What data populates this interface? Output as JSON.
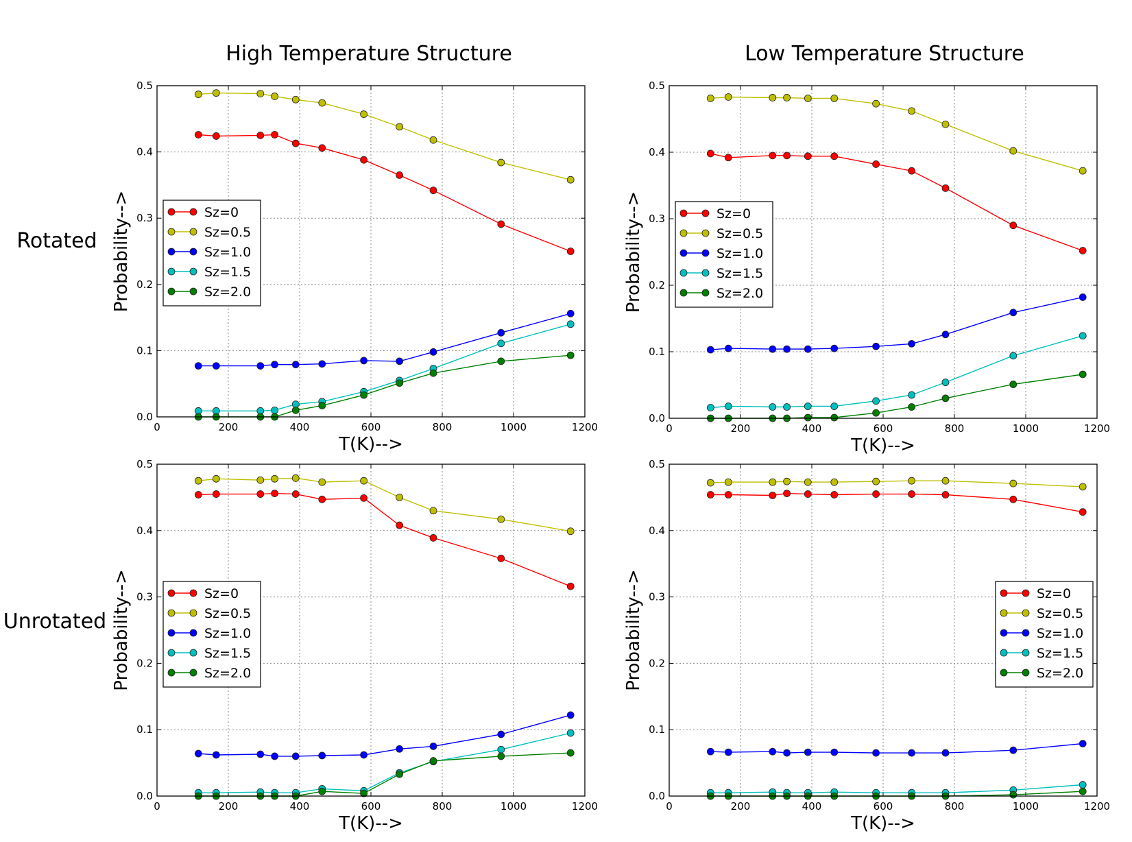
{
  "column_titles": [
    "High Temperature Structure",
    "Low Temperature Structure"
  ],
  "row_labels": [
    "Rotated",
    "Unrotated"
  ],
  "series_colors": [
    "#ff0000",
    "#bfbf00",
    "#0000ff",
    "#00bfbf",
    "#008000"
  ],
  "chart_data": [
    {
      "type": "line",
      "column": "High Temperature Structure",
      "row": "Rotated",
      "xlabel": "T(K)-->",
      "ylabel": "Probability-->",
      "xlim": [
        0,
        1200
      ],
      "ylim": [
        0,
        0.5
      ],
      "xticks": [
        "0",
        "200",
        "400",
        "600",
        "800",
        "1000",
        "1200"
      ],
      "yticks": [
        "0.0",
        "0.1",
        "0.2",
        "0.3",
        "0.4",
        "0.5"
      ],
      "grid": true,
      "legend_position": "center-left",
      "x": [
        116,
        166,
        290,
        330,
        389,
        463,
        580,
        680,
        775,
        965,
        1160
      ],
      "series": [
        {
          "name": "Sz=0",
          "values": [
            0.426,
            0.424,
            0.425,
            0.426,
            0.413,
            0.406,
            0.388,
            0.365,
            0.342,
            0.291,
            0.25
          ]
        },
        {
          "name": "Sz=0.5",
          "values": [
            0.487,
            0.489,
            0.488,
            0.484,
            0.479,
            0.474,
            0.457,
            0.438,
            0.418,
            0.384,
            0.358
          ]
        },
        {
          "name": "Sz=1.0",
          "values": [
            0.077,
            0.077,
            0.077,
            0.079,
            0.079,
            0.08,
            0.085,
            0.084,
            0.098,
            0.127,
            0.156
          ]
        },
        {
          "name": "Sz=1.5",
          "values": [
            0.009,
            0.009,
            0.009,
            0.01,
            0.019,
            0.023,
            0.038,
            0.055,
            0.073,
            0.111,
            0.14
          ]
        },
        {
          "name": "Sz=2.0",
          "values": [
            0.0,
            0.0,
            0.0,
            0.0,
            0.01,
            0.017,
            0.033,
            0.051,
            0.066,
            0.084,
            0.093
          ]
        }
      ]
    },
    {
      "type": "line",
      "column": "Low Temperature Structure",
      "row": "Rotated",
      "xlabel": "T(K)-->",
      "ylabel": "Probability-->",
      "xlim": [
        0,
        1200
      ],
      "ylim": [
        0,
        0.5
      ],
      "xticks": [
        "0",
        "200",
        "400",
        "600",
        "800",
        "1000",
        "1200"
      ],
      "yticks": [
        "0.0",
        "0.1",
        "0.2",
        "0.3",
        "0.4",
        "0.5"
      ],
      "grid": true,
      "legend_position": "center-left",
      "x": [
        116,
        166,
        290,
        330,
        389,
        463,
        580,
        680,
        775,
        965,
        1160
      ],
      "series": [
        {
          "name": "Sz=0",
          "values": [
            0.398,
            0.392,
            0.395,
            0.395,
            0.394,
            0.394,
            0.382,
            0.372,
            0.346,
            0.29,
            0.252
          ]
        },
        {
          "name": "Sz=0.5",
          "values": [
            0.481,
            0.483,
            0.482,
            0.482,
            0.481,
            0.481,
            0.473,
            0.462,
            0.442,
            0.402,
            0.372
          ]
        },
        {
          "name": "Sz=1.0",
          "values": [
            0.103,
            0.105,
            0.104,
            0.104,
            0.104,
            0.105,
            0.108,
            0.112,
            0.126,
            0.159,
            0.182
          ]
        },
        {
          "name": "Sz=1.5",
          "values": [
            0.016,
            0.018,
            0.017,
            0.017,
            0.018,
            0.018,
            0.026,
            0.035,
            0.054,
            0.094,
            0.124
          ]
        },
        {
          "name": "Sz=2.0",
          "values": [
            0.0,
            0.0,
            0.0,
            0.0,
            0.001,
            0.001,
            0.008,
            0.017,
            0.03,
            0.051,
            0.066
          ]
        }
      ]
    },
    {
      "type": "line",
      "column": "High Temperature Structure",
      "row": "Unrotated",
      "xlabel": "T(K)-->",
      "ylabel": "Probability-->",
      "xlim": [
        0,
        1200
      ],
      "ylim": [
        0,
        0.5
      ],
      "xticks": [
        "0",
        "200",
        "400",
        "600",
        "800",
        "1000",
        "1200"
      ],
      "yticks": [
        "0.0",
        "0.1",
        "0.2",
        "0.3",
        "0.4",
        "0.5"
      ],
      "grid": true,
      "legend_position": "center-left",
      "x": [
        116,
        166,
        290,
        330,
        389,
        463,
        580,
        680,
        775,
        965,
        1160
      ],
      "series": [
        {
          "name": "Sz=0",
          "values": [
            0.454,
            0.455,
            0.455,
            0.456,
            0.455,
            0.447,
            0.449,
            0.408,
            0.389,
            0.358,
            0.316
          ]
        },
        {
          "name": "Sz=0.5",
          "values": [
            0.475,
            0.478,
            0.476,
            0.478,
            0.479,
            0.473,
            0.475,
            0.45,
            0.43,
            0.417,
            0.399
          ]
        },
        {
          "name": "Sz=1.0",
          "values": [
            0.064,
            0.062,
            0.063,
            0.06,
            0.06,
            0.061,
            0.062,
            0.071,
            0.075,
            0.093,
            0.122
          ]
        },
        {
          "name": "Sz=1.5",
          "values": [
            0.005,
            0.005,
            0.006,
            0.005,
            0.005,
            0.011,
            0.008,
            0.035,
            0.052,
            0.07,
            0.095
          ]
        },
        {
          "name": "Sz=2.0",
          "values": [
            0.0,
            0.0,
            0.0,
            0.0,
            0.0,
            0.007,
            0.004,
            0.033,
            0.053,
            0.06,
            0.065
          ]
        }
      ]
    },
    {
      "type": "line",
      "column": "Low Temperature Structure",
      "row": "Unrotated",
      "xlabel": "T(K)-->",
      "ylabel": "Probability-->",
      "xlim": [
        0,
        1200
      ],
      "ylim": [
        0,
        0.5
      ],
      "xticks": [
        "0",
        "200",
        "400",
        "600",
        "800",
        "1000",
        "1200"
      ],
      "yticks": [
        "0.0",
        "0.1",
        "0.2",
        "0.3",
        "0.4",
        "0.5"
      ],
      "grid": true,
      "legend_position": "center-right",
      "x": [
        116,
        166,
        290,
        330,
        389,
        463,
        580,
        680,
        775,
        965,
        1160
      ],
      "series": [
        {
          "name": "Sz=0",
          "values": [
            0.454,
            0.454,
            0.453,
            0.456,
            0.455,
            0.454,
            0.455,
            0.455,
            0.454,
            0.447,
            0.428
          ]
        },
        {
          "name": "Sz=0.5",
          "values": [
            0.472,
            0.473,
            0.473,
            0.474,
            0.473,
            0.473,
            0.474,
            0.475,
            0.475,
            0.471,
            0.466
          ]
        },
        {
          "name": "Sz=1.0",
          "values": [
            0.067,
            0.066,
            0.067,
            0.065,
            0.066,
            0.066,
            0.065,
            0.065,
            0.065,
            0.069,
            0.079
          ]
        },
        {
          "name": "Sz=1.5",
          "values": [
            0.005,
            0.005,
            0.006,
            0.005,
            0.005,
            0.006,
            0.005,
            0.005,
            0.005,
            0.009,
            0.017
          ]
        },
        {
          "name": "Sz=2.0",
          "values": [
            0.0,
            0.0,
            0.0,
            0.0,
            0.0,
            0.0,
            0.0,
            0.0,
            0.0,
            0.002,
            0.007
          ]
        }
      ]
    }
  ]
}
